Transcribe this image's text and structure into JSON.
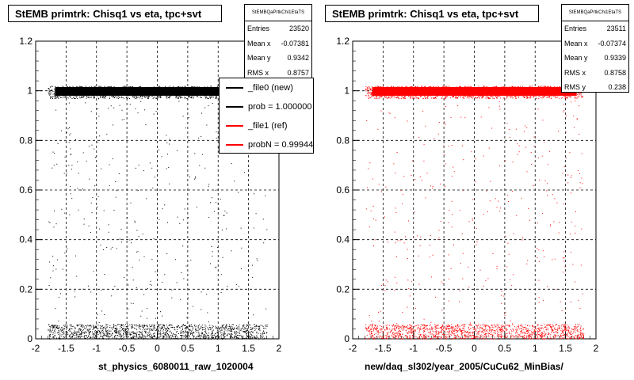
{
  "chart_data": [
    {
      "type": "scatter",
      "title": "StEMB primtrk: Chisq1 vs eta, tpc+svt",
      "xlabel": "st_physics_6080011_raw_1020004",
      "ylabel": "",
      "xlim": [
        -2,
        2
      ],
      "ylim": [
        0,
        1.2
      ],
      "xticks": [
        "-2",
        "-1.5",
        "-1",
        "-0.5",
        "0",
        "0.5",
        "1",
        "1.5",
        "2"
      ],
      "yticks": [
        "0",
        "0.2",
        "0.4",
        "0.6",
        "0.8",
        "1",
        "1.2"
      ],
      "grid": true,
      "marker_color": "#000000",
      "series_description": [
        {
          "band": "dense",
          "x_range": [
            -1.8,
            1.8
          ],
          "y_range": [
            0.97,
            1.02
          ]
        },
        {
          "band": "dense",
          "x_range": [
            -1.8,
            1.8
          ],
          "y_range": [
            0.0,
            0.06
          ]
        },
        {
          "band": "sparse",
          "x_range": [
            -1.8,
            1.8
          ],
          "y_range": [
            0.06,
            0.97
          ]
        }
      ],
      "stats": {
        "name": "StEMBQaPrtkChi1EtaTS",
        "entries": "23520",
        "mean_x": "-0.07381",
        "mean_y": "0.9342",
        "rms_x": "0.8757"
      },
      "legend": [
        {
          "label": "_file0 (new)",
          "color": "#000000"
        },
        {
          "label": "prob = 1.000000",
          "color": "#000000"
        },
        {
          "label": "_file1 (ref)",
          "color": "#ff0000"
        },
        {
          "label": "probN = 0.999445",
          "color": "#ff0000"
        }
      ]
    },
    {
      "type": "scatter",
      "title": "StEMB primtrk: Chisq1 vs eta, tpc+svt",
      "xlabel": "new/daq_sl302/year_2005/CuCu62_MinBias/",
      "ylabel": "",
      "xlim": [
        -2,
        2
      ],
      "ylim": [
        0,
        1.2
      ],
      "xticks": [
        "-2",
        "-1.5",
        "-1",
        "-0.5",
        "0",
        "0.5",
        "1",
        "1.5",
        "2"
      ],
      "yticks": [
        "0",
        "0.2",
        "0.4",
        "0.6",
        "0.8",
        "1",
        "1.2"
      ],
      "grid": true,
      "marker_color": "#ff0000",
      "series_description": [
        {
          "band": "dense",
          "x_range": [
            -1.8,
            1.8
          ],
          "y_range": [
            0.97,
            1.02
          ]
        },
        {
          "band": "dense",
          "x_range": [
            -1.8,
            1.8
          ],
          "y_range": [
            0.0,
            0.06
          ]
        },
        {
          "band": "sparse",
          "x_range": [
            -1.8,
            1.8
          ],
          "y_range": [
            0.06,
            0.97
          ]
        }
      ],
      "stats": {
        "name": "StEMBQaPrtkChi1EtaTS",
        "entries": "23511",
        "mean_x": "-0.07374",
        "mean_y": "0.9339",
        "rms_x": "0.8758",
        "rms_y": "0.238"
      }
    }
  ]
}
